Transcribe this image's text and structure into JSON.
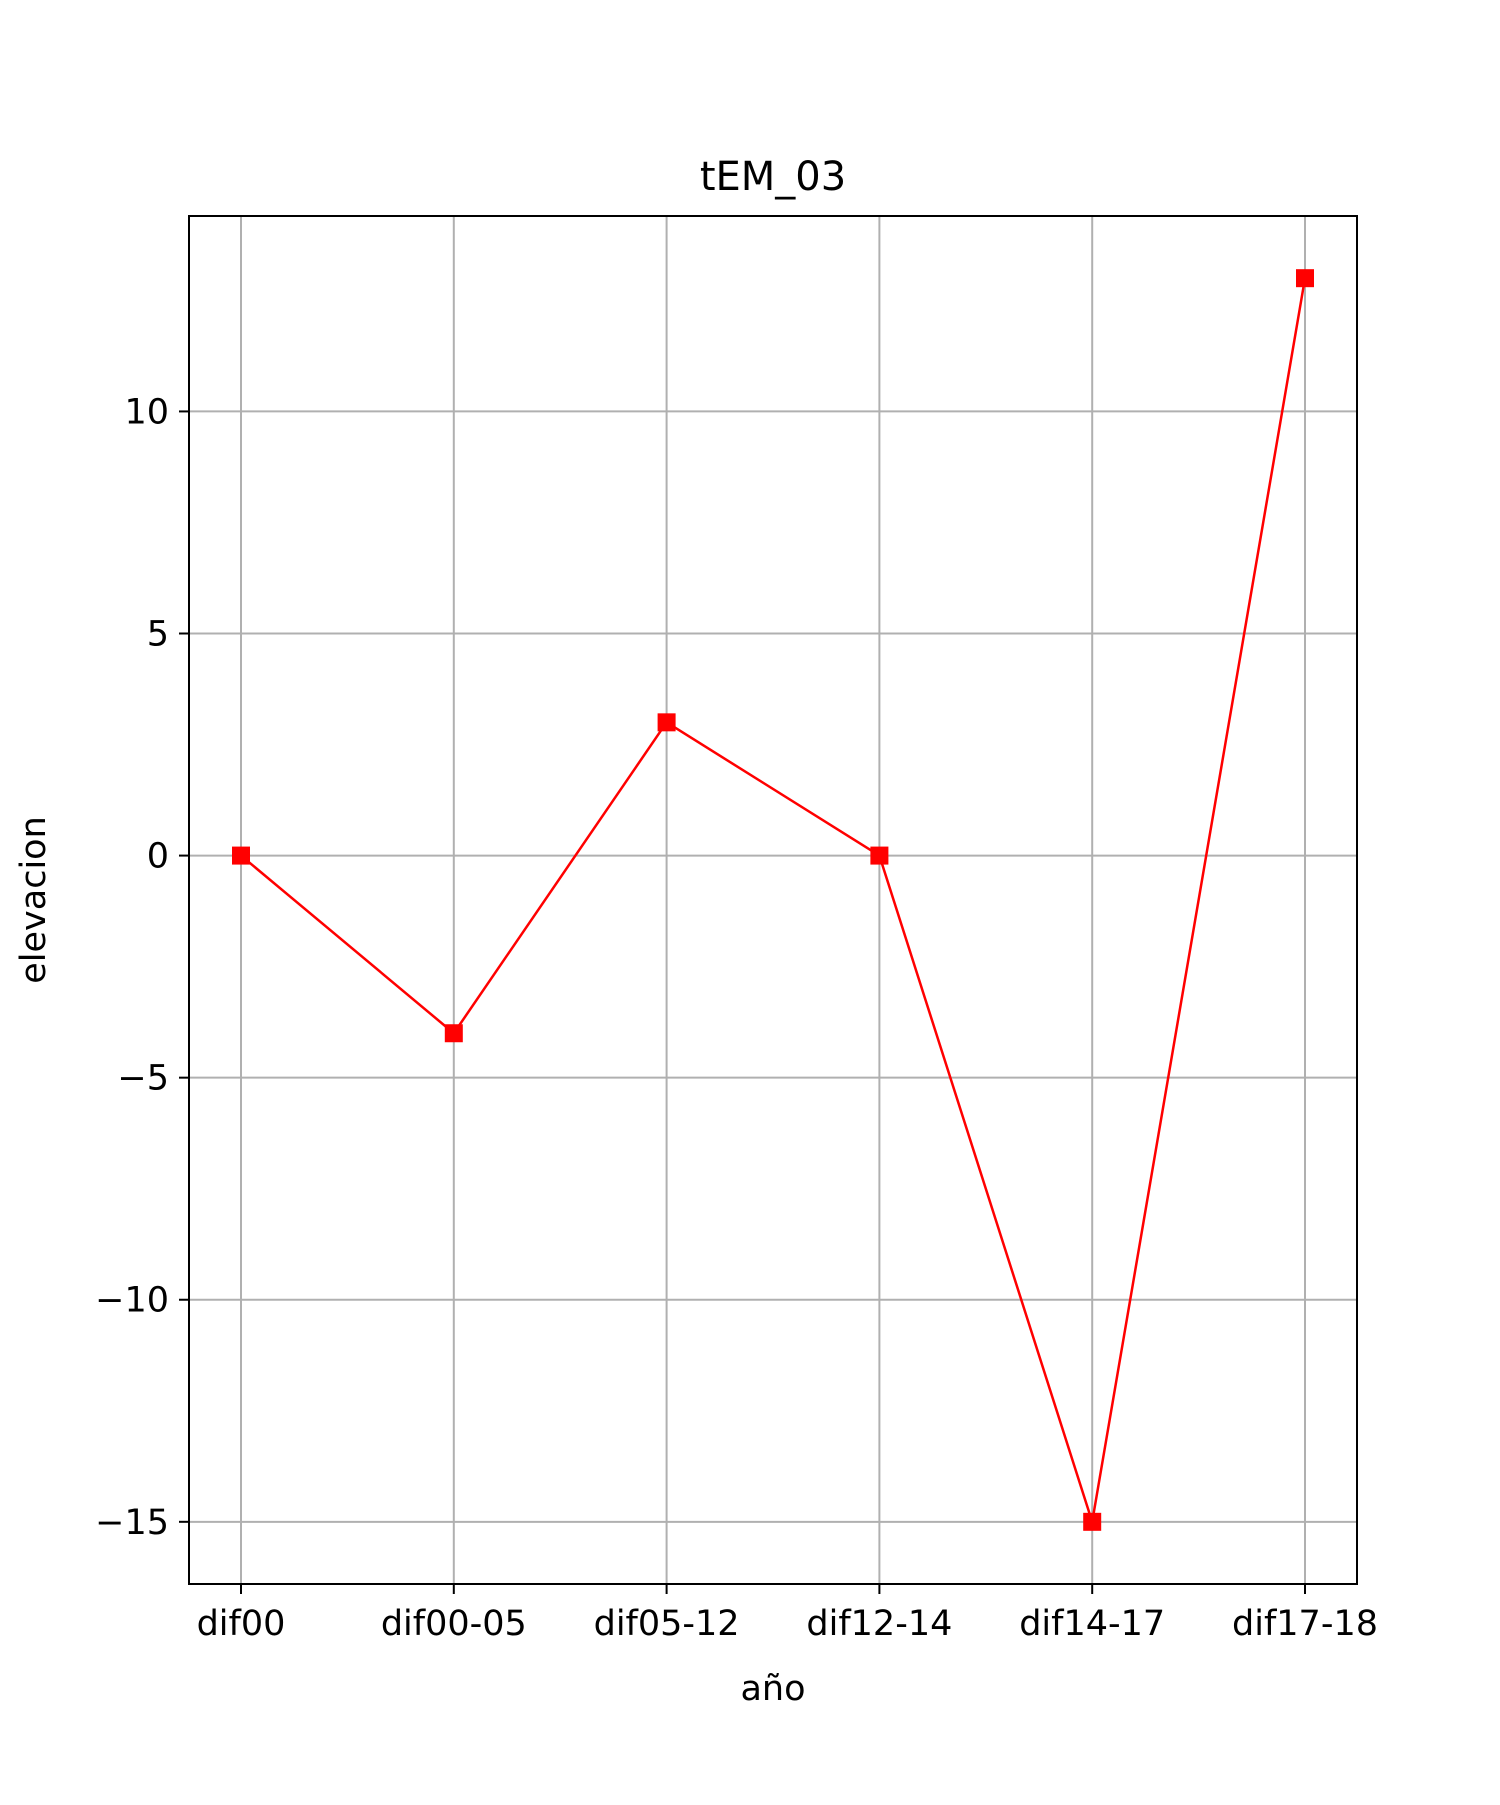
{
  "chart_data": {
    "type": "line",
    "title": "tEM_03",
    "xlabel": "año",
    "ylabel": "elevacion",
    "categories": [
      "dif00",
      "dif00-05",
      "dif05-12",
      "dif12-14",
      "dif14-17",
      "dif17-18"
    ],
    "series": [
      {
        "values": [
          0,
          -4,
          3,
          0,
          -15,
          13
        ],
        "color": "#ff0000",
        "marker": "square"
      }
    ],
    "yticks": [
      -15,
      -10,
      -5,
      0,
      5,
      10
    ],
    "ytick_labels": [
      "−15",
      "−10",
      "−5",
      "0",
      "5",
      "10"
    ],
    "ylim": [
      -16.4,
      14.4
    ],
    "grid": true,
    "grid_color": "#b0b0b0"
  }
}
